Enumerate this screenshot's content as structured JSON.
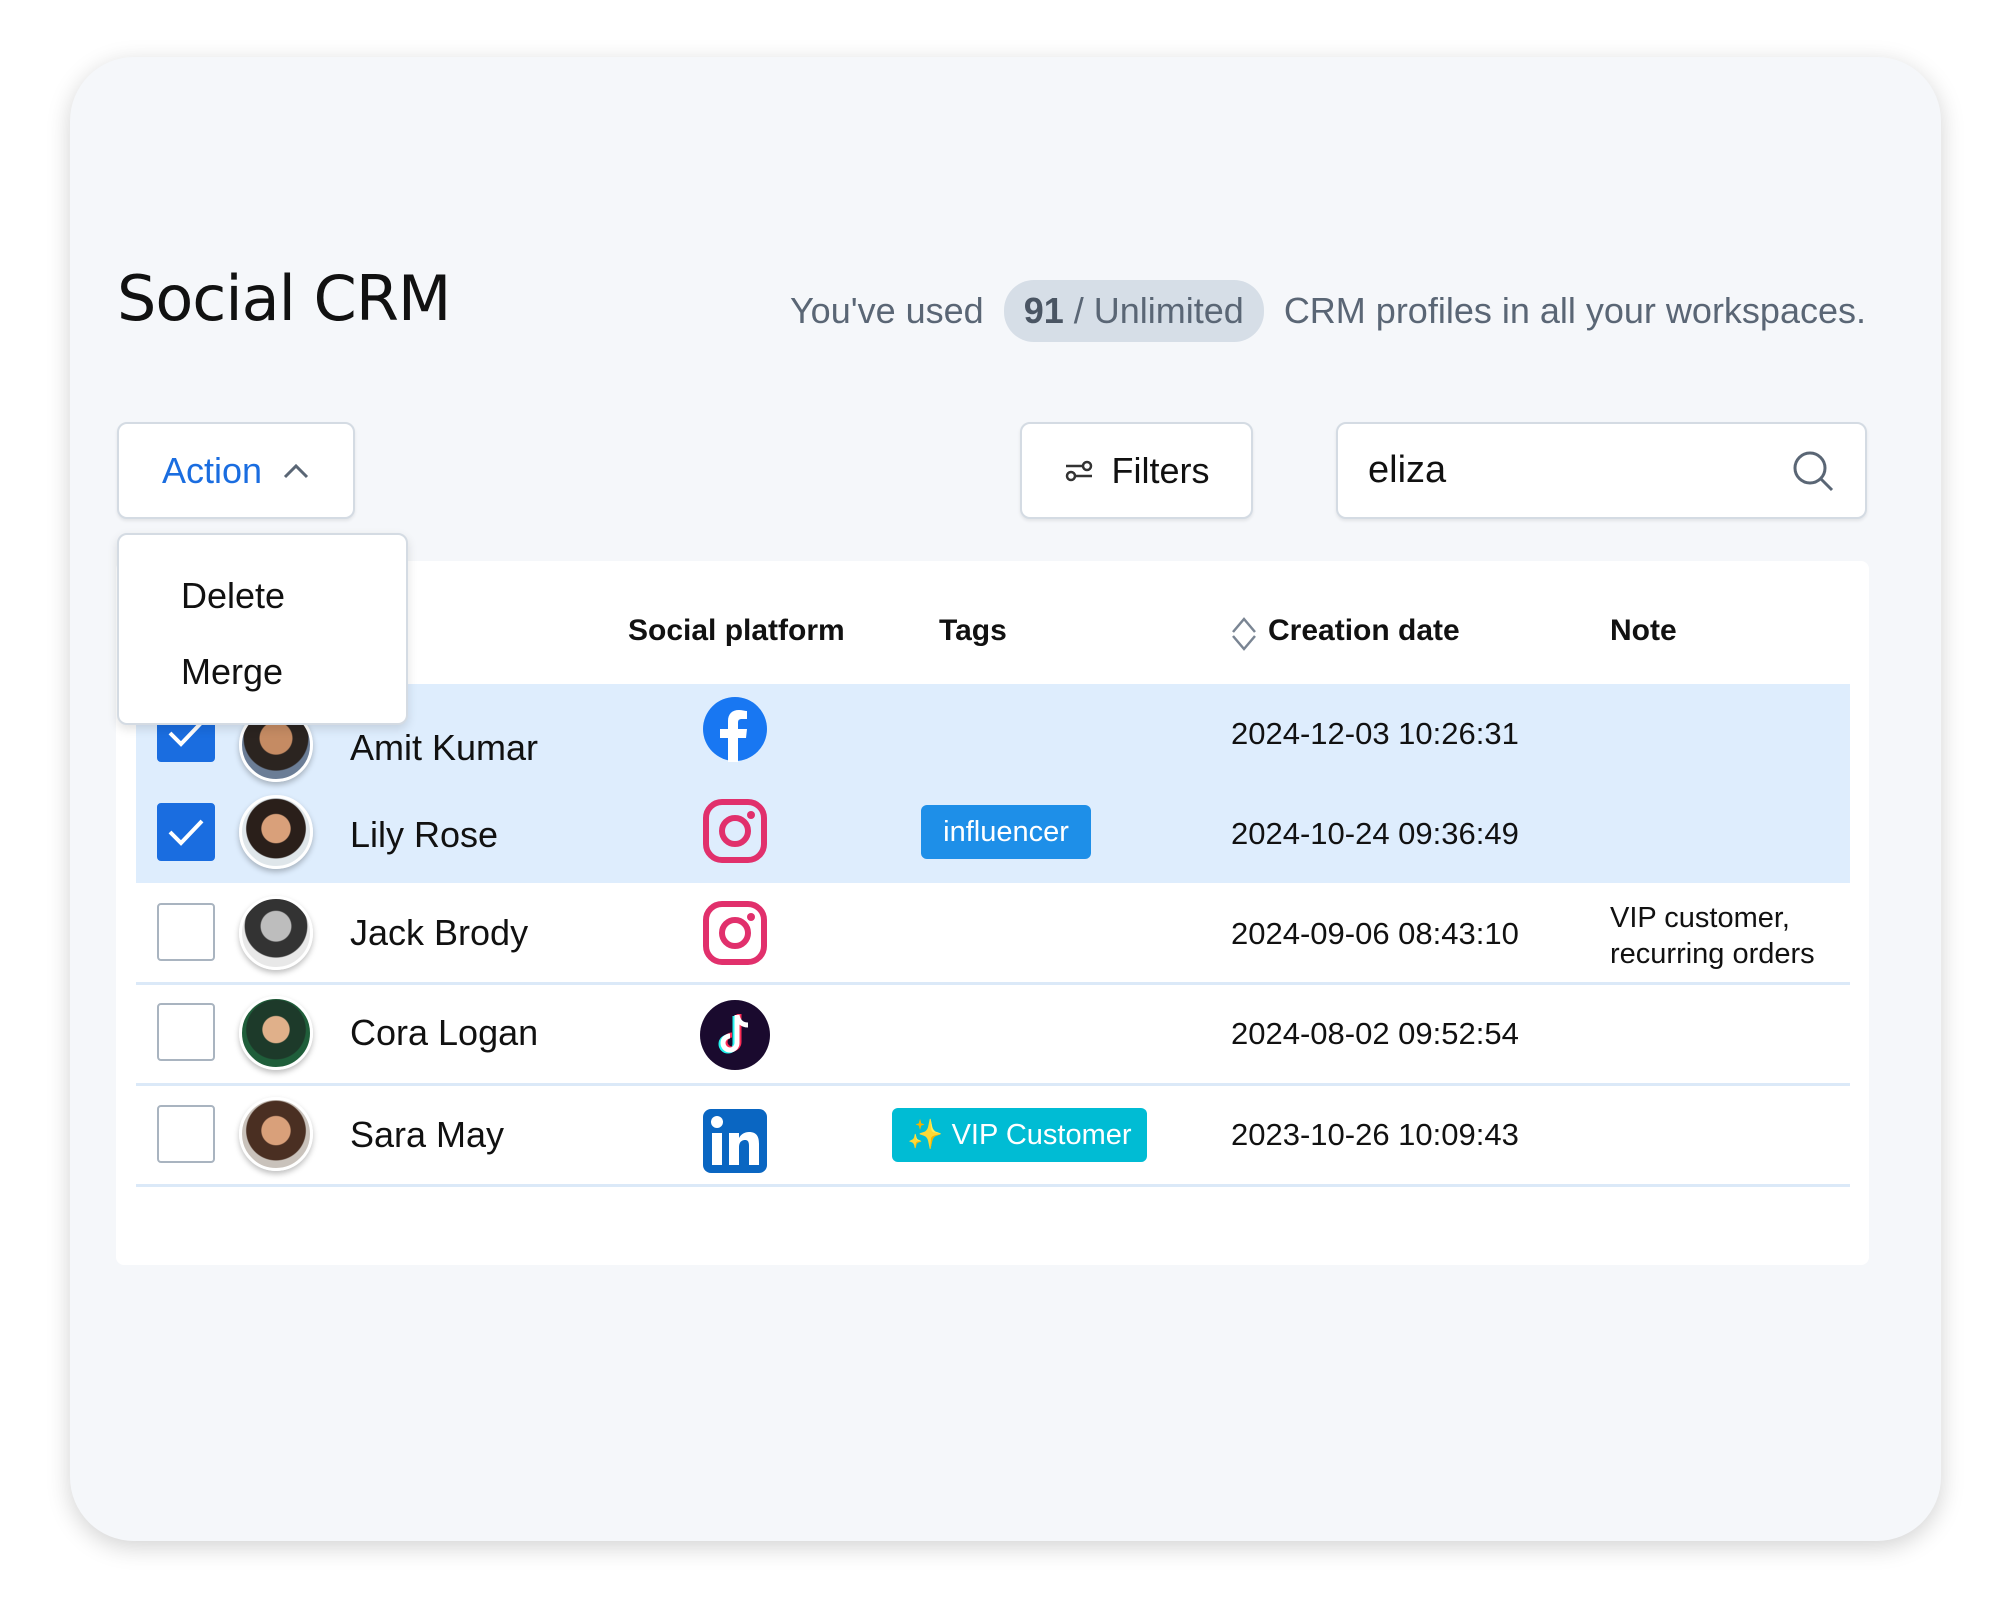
{
  "header": {
    "title": "Social CRM",
    "usage_prefix": "You've used",
    "usage_count": "91",
    "usage_limit": "/ Unlimited",
    "usage_suffix": "CRM profiles in all your workspaces."
  },
  "toolbar": {
    "action_label": "Action",
    "filters_label": "Filters",
    "search_value": "eliza"
  },
  "action_menu": {
    "items": [
      {
        "label": "Delete"
      },
      {
        "label": "Merge"
      }
    ]
  },
  "table": {
    "columns": [
      "Social platform",
      "Tags",
      "Creation date",
      "Note"
    ],
    "rows": [
      {
        "name": "Amit Kumar",
        "platform": "facebook",
        "tag": "",
        "date": "2024-12-03 10:26:31",
        "note": "",
        "selected": true
      },
      {
        "name": "Lily Rose",
        "platform": "instagram",
        "tag": "influencer",
        "date": "2024-10-24 09:36:49",
        "note": "",
        "selected": true
      },
      {
        "name": "Jack Brody",
        "platform": "instagram",
        "tag": "",
        "date": "2024-09-06 08:43:10",
        "note": "VIP customer,",
        "note2": "recurring orders",
        "selected": false
      },
      {
        "name": "Cora Logan",
        "platform": "tiktok",
        "tag": "",
        "date": "2024-08-02 09:52:54",
        "note": "",
        "selected": false
      },
      {
        "name": "Sara May",
        "platform": "linkedin",
        "tag": "✨ VIP Customer",
        "date": "2023-10-26 10:09:43",
        "note": "",
        "selected": false
      }
    ]
  },
  "colors": {
    "accent": "#1a6de0",
    "selected_row": "#deedfd",
    "influencer_tag": "#1e8fe8",
    "vip_tag": "#00bcd4"
  }
}
